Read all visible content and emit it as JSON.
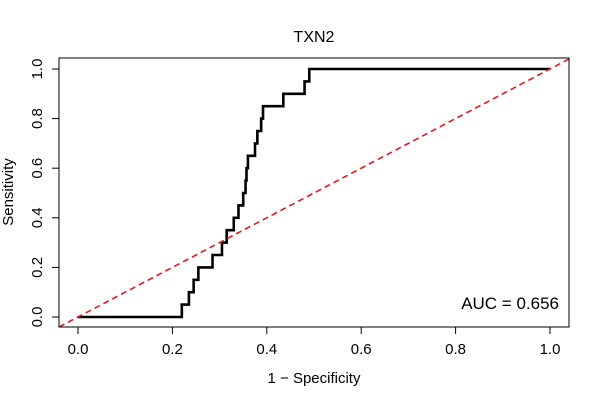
{
  "chart_data": {
    "type": "line",
    "title": "TXN2",
    "xlabel": "1 − Specificity",
    "ylabel": "Sensitivity",
    "xlim": [
      0,
      1
    ],
    "ylim": [
      0,
      1
    ],
    "x_ticks": [
      0,
      0.2,
      0.4,
      0.6,
      0.8,
      1
    ],
    "x_tick_labels": [
      "0.0",
      "0.2",
      "0.4",
      "0.6",
      "0.8",
      "1.0"
    ],
    "y_ticks": [
      0,
      0.2,
      0.4,
      0.6,
      0.8,
      1
    ],
    "y_tick_labels": [
      "0.0",
      "0.2",
      "0.4",
      "0.6",
      "0.8",
      "1.0"
    ],
    "annotation": "AUC = 0.656",
    "colors": {
      "roc": "#000000",
      "reference": "#e31a1c"
    },
    "series": [
      {
        "name": "ROC",
        "style": "step",
        "points": [
          [
            0.0,
            0.0
          ],
          [
            0.22,
            0.0
          ],
          [
            0.22,
            0.05
          ],
          [
            0.235,
            0.05
          ],
          [
            0.235,
            0.1
          ],
          [
            0.245,
            0.1
          ],
          [
            0.245,
            0.15
          ],
          [
            0.255,
            0.15
          ],
          [
            0.255,
            0.2
          ],
          [
            0.285,
            0.2
          ],
          [
            0.285,
            0.25
          ],
          [
            0.305,
            0.25
          ],
          [
            0.305,
            0.3
          ],
          [
            0.315,
            0.3
          ],
          [
            0.315,
            0.35
          ],
          [
            0.33,
            0.35
          ],
          [
            0.33,
            0.4
          ],
          [
            0.34,
            0.4
          ],
          [
            0.34,
            0.45
          ],
          [
            0.35,
            0.45
          ],
          [
            0.35,
            0.5
          ],
          [
            0.355,
            0.5
          ],
          [
            0.355,
            0.55
          ],
          [
            0.357,
            0.55
          ],
          [
            0.357,
            0.6
          ],
          [
            0.36,
            0.6
          ],
          [
            0.36,
            0.65
          ],
          [
            0.375,
            0.65
          ],
          [
            0.375,
            0.7
          ],
          [
            0.38,
            0.7
          ],
          [
            0.38,
            0.75
          ],
          [
            0.388,
            0.75
          ],
          [
            0.388,
            0.8
          ],
          [
            0.392,
            0.8
          ],
          [
            0.392,
            0.85
          ],
          [
            0.435,
            0.85
          ],
          [
            0.435,
            0.9
          ],
          [
            0.48,
            0.9
          ],
          [
            0.48,
            0.95
          ],
          [
            0.49,
            0.95
          ],
          [
            0.49,
            1.0
          ],
          [
            1.0,
            1.0
          ]
        ]
      },
      {
        "name": "Reference",
        "style": "dashed",
        "points": [
          [
            -0.04,
            -0.04
          ],
          [
            1.04,
            1.04
          ]
        ]
      }
    ]
  }
}
